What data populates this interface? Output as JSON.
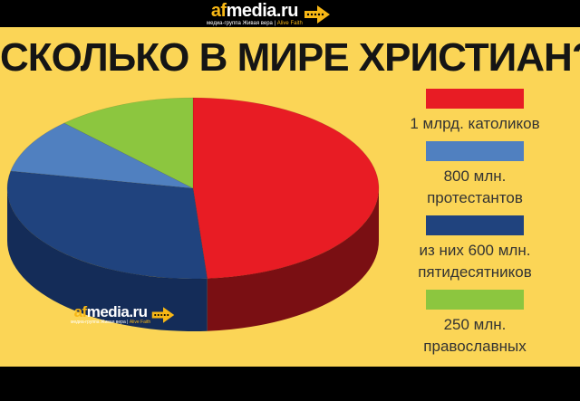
{
  "brand": {
    "af": "af",
    "rest": "media.ru",
    "tagline_main": "медиа-группа Живая вера | ",
    "tagline_alive": "Alive Faith"
  },
  "headline": "СКОЛЬКО В МИРЕ ХРИСТИАН?",
  "legend": [
    {
      "label_lines": [
        "1 млрд. католиков"
      ],
      "color": "#e81c24"
    },
    {
      "label_lines": [
        "800 млн.",
        "протестантов"
      ],
      "color": "#5080c0"
    },
    {
      "label_lines": [
        "из них 600 млн.",
        "пятидесятников"
      ],
      "color": "#20437e"
    },
    {
      "label_lines": [
        "250 млн.",
        "православных"
      ],
      "color": "#8cc63f"
    }
  ],
  "chart_data": {
    "type": "pie",
    "title": "СКОЛЬКО В МИРЕ ХРИСТИАН?",
    "style": "3d",
    "slices": [
      {
        "label": "1 млрд. католиков",
        "value": 1000,
        "color": "#e81c24",
        "side_color": "#7a0f13"
      },
      {
        "label": "из них 600 млн. пятидесятников",
        "value": 600,
        "color": "#20437e",
        "side_color": "#142c58"
      },
      {
        "label": "800 млн. протестантов",
        "value": 200,
        "color": "#5080c0",
        "side_color": "#2f5a92"
      },
      {
        "label": "250 млн. православных",
        "value": 250,
        "color": "#8cc63f",
        "side_color": "#5c8a25"
      }
    ],
    "legend_position": "right"
  }
}
